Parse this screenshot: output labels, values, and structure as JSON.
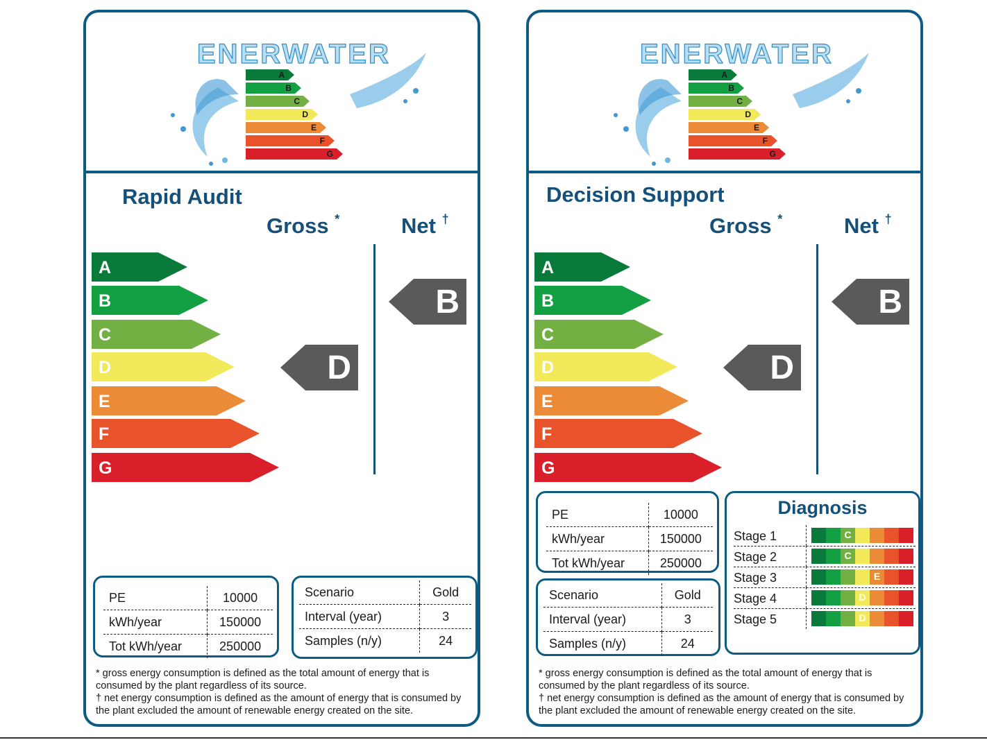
{
  "colors": {
    "frame": "#0d5a82",
    "heading": "#14507a",
    "pointer": "#5a5a5a",
    "grades": {
      "A": "#0a7a3a",
      "B": "#13a043",
      "C": "#73b043",
      "D": "#f2e95a",
      "E": "#eb8b37",
      "F": "#e8532c",
      "G": "#d91f2a"
    }
  },
  "logo_text": "ENERWATER",
  "grades": [
    "A",
    "B",
    "C",
    "D",
    "E",
    "F",
    "G"
  ],
  "gross_head": "Gross",
  "gross_mark": "*",
  "net_head": "Net",
  "net_mark": "†",
  "footnotes": [
    "* gross energy consumption is defined as the total amount of energy that is consumed by the plant regardless of its source.",
    "† net energy consumption is defined as the amount of energy that is consumed by the plant excluded the amount of renewable energy created on the site."
  ],
  "labels": [
    {
      "title": "Rapid Audit",
      "gross_rating": "D",
      "net_rating": "B",
      "plant_table": [
        [
          "PE",
          "10000"
        ],
        [
          "kWh/year",
          "150000"
        ],
        [
          "Tot kWh/year",
          "250000"
        ]
      ],
      "scenario_table": [
        [
          "Scenario",
          "Gold"
        ],
        [
          "Interval (year)",
          "3"
        ],
        [
          "Samples (n/y)",
          "24"
        ]
      ]
    },
    {
      "title": "Decision Support",
      "gross_rating": "D",
      "net_rating": "B",
      "plant_table": [
        [
          "PE",
          "10000"
        ],
        [
          "kWh/year",
          "150000"
        ],
        [
          "Tot kWh/year",
          "250000"
        ]
      ],
      "scenario_table": [
        [
          "Scenario",
          "Gold"
        ],
        [
          "Interval (year)",
          "3"
        ],
        [
          "Samples (n/y)",
          "24"
        ]
      ],
      "diagnosis": {
        "title": "Diagnosis",
        "stages": [
          {
            "label": "Stage 1",
            "rating": "C"
          },
          {
            "label": "Stage 2",
            "rating": "C"
          },
          {
            "label": "Stage 3",
            "rating": "E"
          },
          {
            "label": "Stage 4",
            "rating": "D"
          },
          {
            "label": "Stage 5",
            "rating": "D"
          }
        ]
      }
    }
  ]
}
